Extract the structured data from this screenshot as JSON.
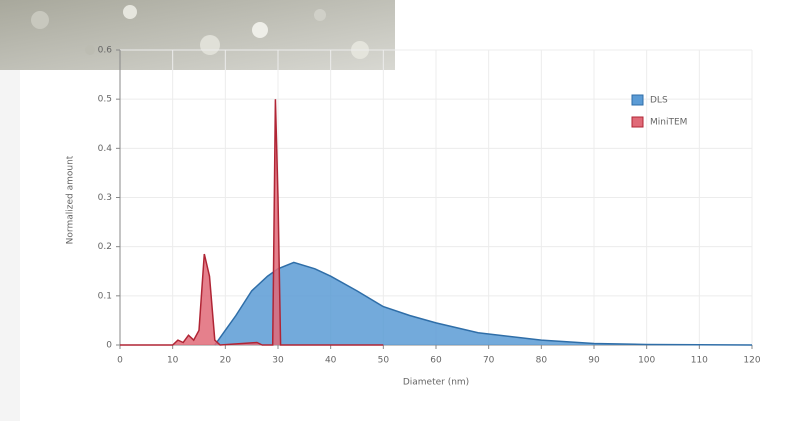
{
  "chart_data": {
    "type": "area",
    "x_label": "Diameter (nm)",
    "y_label": "Normalized amount",
    "xlim": [
      0,
      120
    ],
    "xticks": [
      0,
      10,
      20,
      30,
      40,
      50,
      60,
      70,
      80,
      90,
      100,
      110,
      120
    ],
    "ylim": [
      0,
      0.6
    ],
    "yticks": [
      0,
      0.1,
      0.2,
      0.3,
      0.4,
      0.5,
      0.6
    ],
    "grid": true,
    "legend": "upper right",
    "series": [
      {
        "name": "DLS",
        "color": "#5b9bd5",
        "line_color": "#2f6ea8",
        "x": [
          18,
          20,
          22,
          25,
          28,
          30,
          33,
          37,
          40,
          45,
          50,
          55,
          60,
          68,
          80,
          90,
          100,
          120
        ],
        "values": [
          0,
          0.03,
          0.06,
          0.11,
          0.14,
          0.155,
          0.168,
          0.155,
          0.14,
          0.11,
          0.078,
          0.06,
          0.045,
          0.025,
          0.01,
          0.003,
          0.001,
          0
        ]
      },
      {
        "name": "MiniTEM",
        "color": "#e06a78",
        "line_color": "#b02535",
        "x": [
          0,
          10,
          11,
          12,
          13,
          14,
          15,
          16,
          17,
          18,
          19,
          26,
          27,
          29,
          29.5,
          30,
          30.5,
          50
        ],
        "values": [
          0,
          0,
          0.01,
          0.005,
          0.02,
          0.01,
          0.03,
          0.185,
          0.14,
          0.01,
          0,
          0.005,
          0,
          0,
          0.5,
          0.3,
          0,
          0
        ]
      }
    ]
  }
}
